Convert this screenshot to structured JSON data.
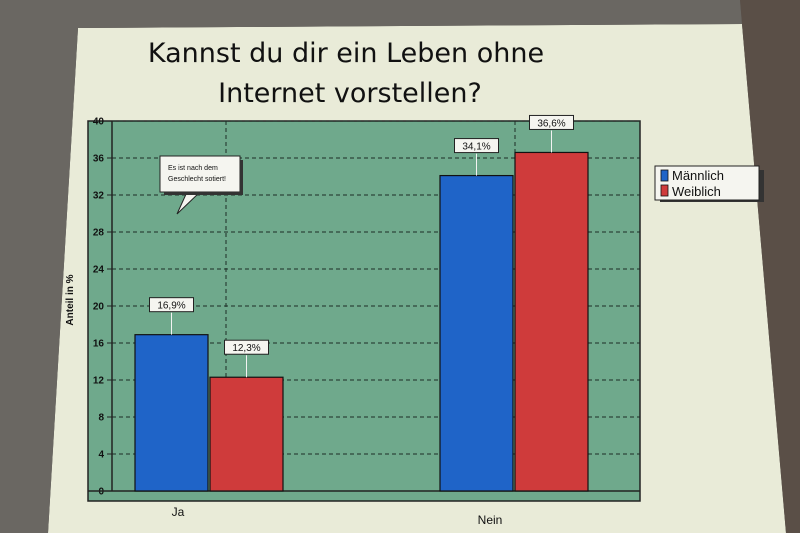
{
  "colors": {
    "paper": "#e9ebd8",
    "plot_bg": "#6fa98c",
    "male": "#1f64c8",
    "female": "#cf3b3b",
    "grid": "#1c2d26"
  },
  "chart_data": {
    "type": "bar",
    "title_lines": [
      "Kannst du dir ein Leben ohne",
      "Internet vorstellen?"
    ],
    "ylabel": "Anteil in %",
    "ylim": [
      0,
      40
    ],
    "yticks": [
      0,
      4,
      8,
      12,
      16,
      20,
      24,
      28,
      32,
      36,
      40
    ],
    "categories": [
      "Ja",
      "Nein"
    ],
    "series": [
      {
        "name": "Männlich",
        "values": [
          16.9,
          34.1
        ],
        "labels": [
          "16,9%",
          "34,1%"
        ]
      },
      {
        "name": "Weiblich",
        "values": [
          12.3,
          36.6
        ],
        "labels": [
          "12,3%",
          "36,6%"
        ]
      }
    ],
    "legend_position": "right",
    "grid": true,
    "annotation": {
      "lines": [
        "Es ist nach dem",
        "Geschlecht sotiert!"
      ]
    }
  }
}
